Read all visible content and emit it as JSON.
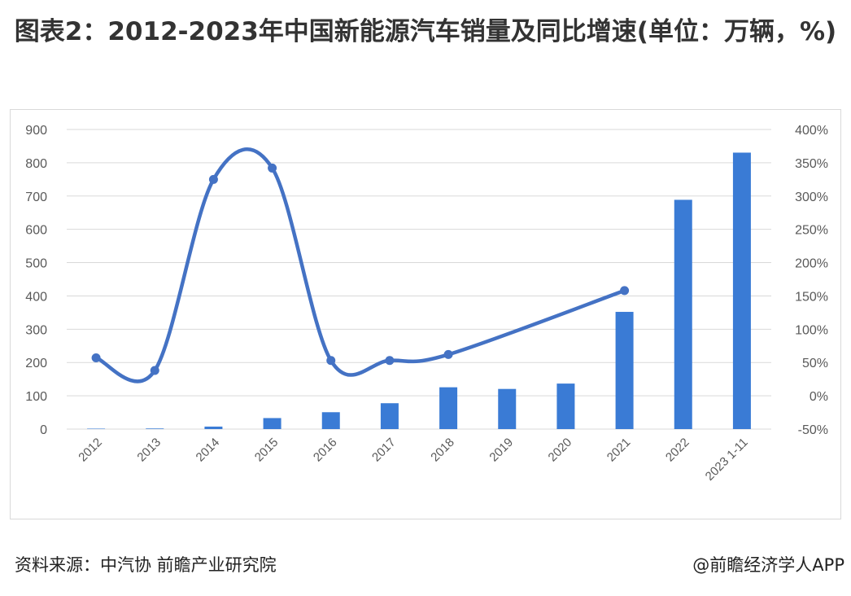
{
  "title": "图表2：2012-2023年中国新能源汽车销量及同比增速(单位：万辆，%)",
  "source": "资料来源：中汽协 前瞻产业研究院",
  "credit": "@前瞻经济学人APP",
  "colors": {
    "bar": "#3a7bd5",
    "line": "#4472c4",
    "grid": "#d9d9d9",
    "text": "#595959"
  },
  "chart_data": {
    "type": "bar",
    "categories": [
      "2012",
      "2013",
      "2014",
      "2015",
      "2016",
      "2017",
      "2018",
      "2019",
      "2020",
      "2021",
      "2022",
      "2023 1-11"
    ],
    "series": [
      {
        "type": "bar",
        "axis": "left",
        "values": [
          1.3,
          1.8,
          7.5,
          33.1,
          50.7,
          77.7,
          125.6,
          120.6,
          136.7,
          352.1,
          688.7,
          830.4
        ]
      },
      {
        "type": "line",
        "axis": "right",
        "smooth": true,
        "values": [
          57,
          38,
          325,
          342,
          53,
          53,
          62,
          null,
          null,
          158,
          null,
          null
        ]
      }
    ],
    "y_left": {
      "ticks": [
        "0",
        "100",
        "200",
        "300",
        "400",
        "500",
        "600",
        "700",
        "800",
        "900"
      ],
      "ylim": [
        0,
        900
      ]
    },
    "y_right": {
      "ticks": [
        "-50%",
        "0%",
        "50%",
        "100%",
        "150%",
        "200%",
        "250%",
        "300%",
        "350%",
        "400%"
      ],
      "ylim": [
        -50,
        400
      ]
    },
    "grid": true,
    "legend": "none"
  }
}
